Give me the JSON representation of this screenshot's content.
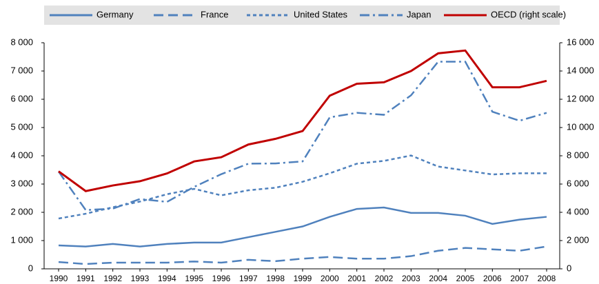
{
  "chart_data": {
    "type": "line",
    "categories": [
      "1990",
      "1991",
      "1992",
      "1993",
      "1994",
      "1995",
      "1996",
      "1997",
      "1998",
      "1999",
      "2000",
      "2001",
      "2002",
      "2003",
      "2004",
      "2005",
      "2006",
      "2007",
      "2008"
    ],
    "ylim": [
      0,
      8000
    ],
    "yticks": [
      0,
      {
        "value": 1000,
        "label": "1 000"
      },
      {
        "value": 2000,
        "label": "2 000"
      },
      {
        "value": 3000,
        "label": "3 000"
      },
      {
        "value": 4000,
        "label": "4 000"
      },
      {
        "value": 5000,
        "label": "5 000"
      },
      {
        "value": 6000,
        "label": "6 000"
      },
      {
        "value": 7000,
        "label": "7 000"
      },
      {
        "value": 8000,
        "label": "8 000"
      }
    ],
    "y2lim": [
      0,
      16000
    ],
    "y2ticks": [
      0,
      {
        "value": 2000,
        "label": "2 000"
      },
      {
        "value": 4000,
        "label": "4 000"
      },
      {
        "value": 6000,
        "label": "6 000"
      },
      {
        "value": 8000,
        "label": "8 000"
      },
      {
        "value": 10000,
        "label": "10 000"
      },
      {
        "value": 12000,
        "label": "12 000"
      },
      {
        "value": 14000,
        "label": "14 000"
      },
      {
        "value": 16000,
        "label": "16 000"
      }
    ],
    "grid": false,
    "legend": "top",
    "series": [
      {
        "name": "Germany",
        "color": "#4f81bd",
        "dash": "solid",
        "values": [
          830,
          790,
          880,
          790,
          880,
          930,
          930,
          1120,
          1310,
          1500,
          1840,
          2120,
          2170,
          1980,
          1980,
          1880,
          1590,
          1740,
          1840
        ]
      },
      {
        "name": "France",
        "color": "#4f81bd",
        "dash": "dashed",
        "values": [
          240,
          170,
          220,
          220,
          220,
          260,
          220,
          320,
          270,
          360,
          420,
          360,
          360,
          450,
          640,
          740,
          690,
          640,
          790
        ]
      },
      {
        "name": "United States",
        "color": "#4f81bd",
        "dash": "dotted",
        "values": [
          1780,
          1950,
          2180,
          2380,
          2640,
          2830,
          2600,
          2780,
          2870,
          3080,
          3380,
          3720,
          3820,
          4010,
          3620,
          3480,
          3340,
          3380,
          3380
        ]
      },
      {
        "name": "Japan",
        "color": "#4f81bd",
        "dash": "dashdot",
        "values": [
          3440,
          2080,
          2130,
          2470,
          2370,
          2900,
          3350,
          3720,
          3730,
          3800,
          5360,
          5520,
          5450,
          6140,
          7330,
          7330,
          5560,
          5240,
          5520
        ]
      },
      {
        "name": "OECD (right  scale)",
        "color": "#c00000",
        "dash": "solid",
        "axis": "y2",
        "values": [
          6900,
          5500,
          5900,
          6200,
          6750,
          7600,
          7900,
          8800,
          9200,
          9750,
          12250,
          13100,
          13200,
          14000,
          15250,
          15450,
          12850,
          12850,
          13300
        ]
      }
    ]
  }
}
